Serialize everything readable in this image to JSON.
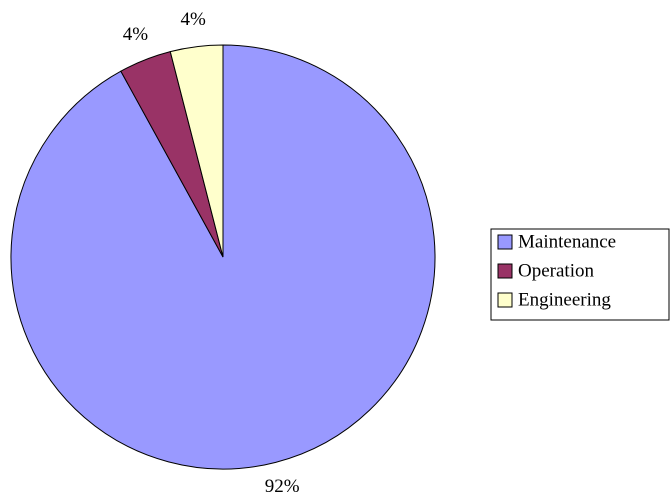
{
  "chart_data": {
    "type": "pie",
    "categories": [
      "Maintenance",
      "Operation",
      "Engineering"
    ],
    "values": [
      92,
      4,
      4
    ],
    "value_labels": [
      "92%",
      "4%",
      "4%"
    ],
    "colors": [
      "#9999ff",
      "#993366",
      "#ffffcc"
    ]
  }
}
